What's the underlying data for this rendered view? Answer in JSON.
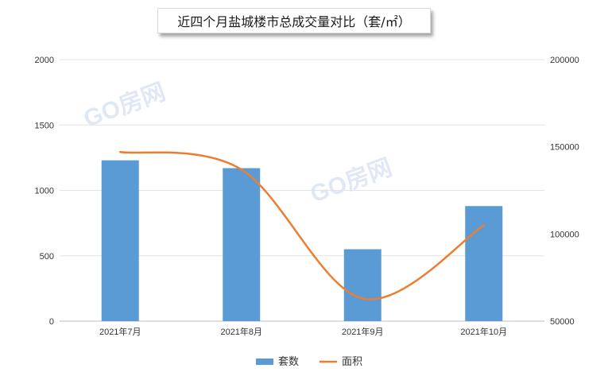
{
  "watermark": "GO房网",
  "chart_data": {
    "type": "bar",
    "title": "近四个月盐城楼市总成交量对比（套/㎡）",
    "categories": [
      "2021年7月",
      "2021年8月",
      "2021年9月",
      "2021年10月"
    ],
    "series": [
      {
        "name": "套数",
        "type": "bar",
        "axis": "left",
        "color": "#5b9bd5",
        "values": [
          1230,
          1170,
          550,
          880
        ]
      },
      {
        "name": "面积",
        "type": "line",
        "axis": "right",
        "color": "#ed7d31",
        "values": [
          147000,
          137000,
          63000,
          105000
        ]
      }
    ],
    "ylim_left": [
      0,
      2000
    ],
    "yticks_left": [
      "0",
      "500",
      "1000",
      "1500",
      "2000"
    ],
    "ylim_right": [
      50000,
      200000
    ],
    "yticks_right": [
      "50000",
      "100000",
      "150000",
      "200000"
    ],
    "grid": true,
    "legend": "bottom"
  }
}
